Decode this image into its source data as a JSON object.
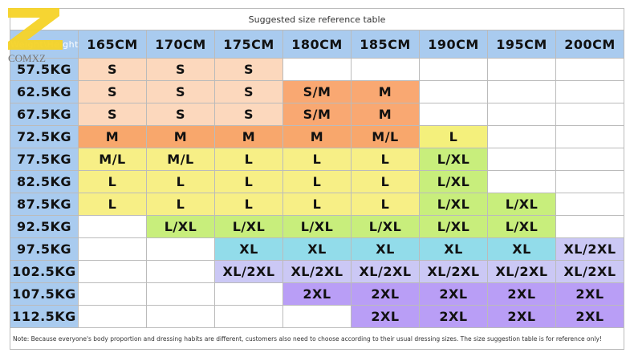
{
  "logo": "COMXZ",
  "table": {
    "title": "Suggested size reference table",
    "corner": "Weight\\Height",
    "header_color": "#a9cbef",
    "columns": [
      "165CM",
      "170CM",
      "175CM",
      "180CM",
      "185CM",
      "190CM",
      "195CM",
      "200CM"
    ],
    "rows": [
      {
        "label": "57.5KG",
        "cells": [
          "S",
          "S",
          "S",
          null,
          null,
          null,
          null,
          null
        ],
        "colors": [
          "#fcd8bd",
          "#fcd8bd",
          "#fcd8bd",
          null,
          null,
          null,
          null,
          null
        ]
      },
      {
        "label": "62.5KG",
        "cells": [
          "S",
          "S",
          "S",
          "S/M",
          "M",
          null,
          null,
          null
        ],
        "colors": [
          "#fcd8bd",
          "#fcd8bd",
          "#fcd8bd",
          "#f9a872",
          "#f9a872",
          null,
          null,
          null
        ]
      },
      {
        "label": "67.5KG",
        "cells": [
          "S",
          "S",
          "S",
          "S/M",
          "M",
          null,
          null,
          null
        ],
        "colors": [
          "#fcd8bd",
          "#fcd8bd",
          "#fcd8bd",
          "#f9a872",
          "#f9a872",
          null,
          null,
          null
        ]
      },
      {
        "label": "72.5KG",
        "cells": [
          "M",
          "M",
          "M",
          "M",
          "M/L",
          "L",
          null,
          null
        ],
        "colors": [
          "#f8a76c",
          "#f8a76c",
          "#f8a76c",
          "#f8a76c",
          "#f8a76c",
          "#f4f07c",
          null,
          null
        ]
      },
      {
        "label": "77.5KG",
        "cells": [
          "M/L",
          "M/L",
          "L",
          "L",
          "L",
          "L/XL",
          null,
          null
        ],
        "colors": [
          "#f7ef86",
          "#f7ef86",
          "#f7ef86",
          "#f7ef86",
          "#f7ef86",
          "#c8ee7c",
          null,
          null
        ]
      },
      {
        "label": "82.5KG",
        "cells": [
          "L",
          "L",
          "L",
          "L",
          "L",
          "L/XL",
          null,
          null
        ],
        "colors": [
          "#f7ef86",
          "#f7ef86",
          "#f7ef86",
          "#f7ef86",
          "#f7ef86",
          "#c8ee7c",
          null,
          null
        ]
      },
      {
        "label": "87.5KG",
        "cells": [
          "L",
          "L",
          "L",
          "L",
          "L",
          "L/XL",
          "L/XL",
          null
        ],
        "colors": [
          "#f7ef86",
          "#f7ef86",
          "#f7ef86",
          "#f7ef86",
          "#f7ef86",
          "#c8ee7c",
          "#c8ee7c",
          null
        ]
      },
      {
        "label": "92.5KG",
        "cells": [
          null,
          "L/XL",
          "L/XL",
          "L/XL",
          "L/XL",
          "L/XL",
          "L/XL",
          null
        ],
        "colors": [
          null,
          "#c8ee7c",
          "#c8ee7c",
          "#c8ee7c",
          "#c8ee7c",
          "#c8ee7c",
          "#c8ee7c",
          null
        ]
      },
      {
        "label": "97.5KG",
        "cells": [
          null,
          null,
          "XL",
          "XL",
          "XL",
          "XL",
          "XL",
          "XL/2XL"
        ],
        "colors": [
          null,
          null,
          "#92dcea",
          "#92dcea",
          "#92dcea",
          "#92dcea",
          "#92dcea",
          "#cbc8f5"
        ]
      },
      {
        "label": "102.5KG",
        "cells": [
          null,
          null,
          "XL/2XL",
          "XL/2XL",
          "XL/2XL",
          "XL/2XL",
          "XL/2XL",
          "XL/2XL"
        ],
        "colors": [
          null,
          null,
          "#cbc8f5",
          "#cbc8f5",
          "#cbc8f5",
          "#cbc8f5",
          "#cbc8f5",
          "#cbc8f5"
        ]
      },
      {
        "label": "107.5KG",
        "cells": [
          null,
          null,
          null,
          "2XL",
          "2XL",
          "2XL",
          "2XL",
          "2XL"
        ],
        "colors": [
          null,
          null,
          null,
          "#b99ef6",
          "#b99ef6",
          "#b99ef6",
          "#b99ef6",
          "#b99ef6"
        ]
      },
      {
        "label": "112.5KG",
        "cells": [
          null,
          null,
          null,
          null,
          "2XL",
          "2XL",
          "2XL",
          "2XL"
        ],
        "colors": [
          null,
          null,
          null,
          null,
          "#b99ef6",
          "#b99ef6",
          "#b99ef6",
          "#b99ef6"
        ]
      }
    ],
    "note": "Note: Because everyone's body proportion and dressing habits are different, customers also need to choose according to their usual dressing sizes. The size suggestion table is for reference only!"
  }
}
